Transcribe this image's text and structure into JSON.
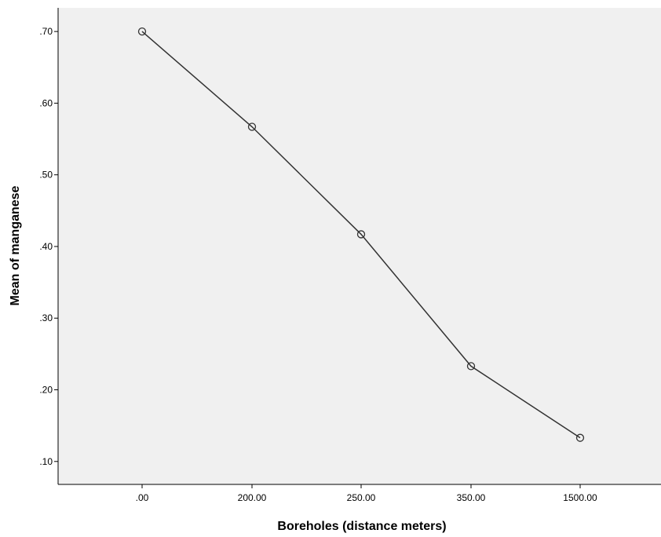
{
  "chart_data": {
    "type": "line",
    "title": "",
    "xlabel": "Boreholes (distance meters)",
    "ylabel": "Mean of manganese",
    "categories": [
      ".00",
      "200.00",
      "250.00",
      "350.00",
      "1500.00"
    ],
    "series": [
      {
        "values": [
          0.7,
          0.567,
          0.417,
          0.233,
          0.133
        ]
      }
    ],
    "y_ticks": [
      {
        "value": 0.1,
        "label": ".10"
      },
      {
        "value": 0.2,
        "label": ".20"
      },
      {
        "value": 0.3,
        "label": ".30"
      },
      {
        "value": 0.4,
        "label": ".40"
      },
      {
        "value": 0.5,
        "label": ".50"
      },
      {
        "value": 0.6,
        "label": ".60"
      },
      {
        "value": 0.7,
        "label": ".70"
      }
    ],
    "ylim": [
      0.068,
      0.733
    ],
    "grid": false,
    "marker": "open-circle",
    "colors": {
      "plot_background": "#f0f0f0",
      "line": "#333333",
      "axis": "#000000"
    }
  }
}
